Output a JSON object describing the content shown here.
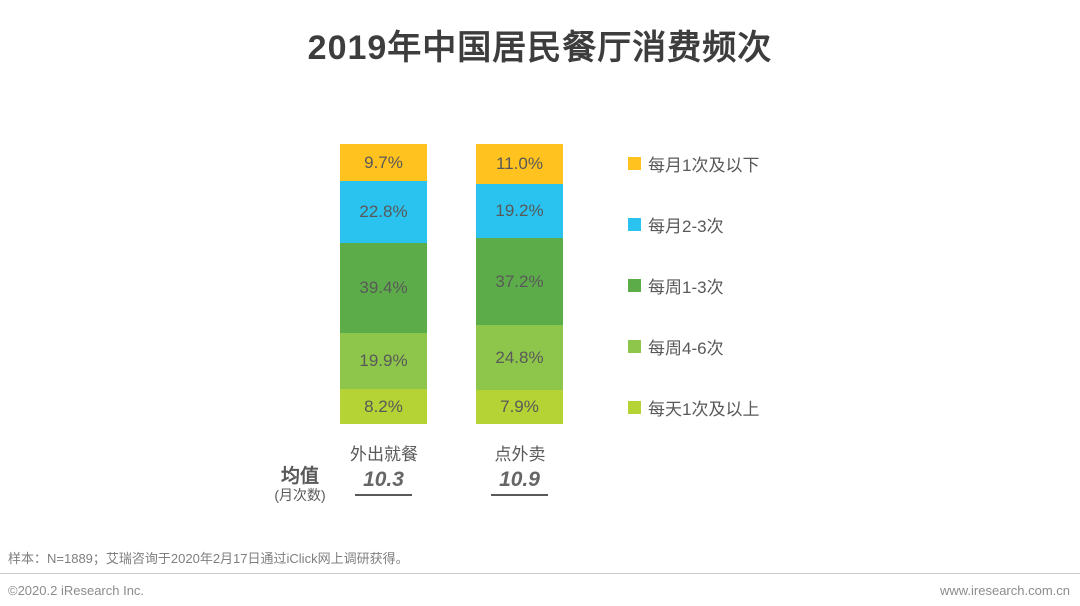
{
  "title": "2019年中国居民餐厅消费频次",
  "chart_data": {
    "type": "bar",
    "stacked": true,
    "orientation": "vertical",
    "unit": "percent",
    "value_suffix": "%",
    "categories": [
      "外出就餐",
      "点外卖"
    ],
    "series": [
      {
        "name": "每月1次及以下",
        "color": "#FFC21E",
        "values": [
          9.7,
          11.0
        ]
      },
      {
        "name": "每月2-3次",
        "color": "#2AC2EF",
        "values": [
          22.8,
          19.2
        ]
      },
      {
        "name": "每周1-3次",
        "color": "#5CAD4A",
        "values": [
          39.4,
          37.2
        ]
      },
      {
        "name": "每周4-6次",
        "color": "#8EC64B",
        "values": [
          19.9,
          24.8
        ]
      },
      {
        "name": "每天1次及以上",
        "color": "#B5D335",
        "values": [
          8.2,
          7.9
        ]
      }
    ],
    "legend_position": "right",
    "label_color": "#595959",
    "mean": {
      "label": "均值",
      "sublabel": "(月次数)",
      "values": [
        "10.3",
        "10.9"
      ]
    }
  },
  "footer": {
    "note": "样本：N=1889；艾瑞咨询于2020年2月17日通过iClick网上调研获得。",
    "copyright": "©2020.2 iResearch Inc.",
    "website": "www.iresearch.com.cn"
  }
}
